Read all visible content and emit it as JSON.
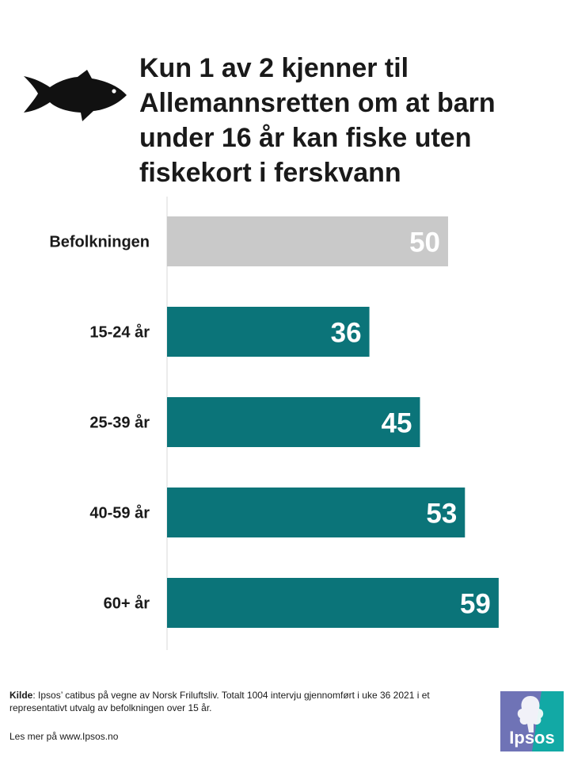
{
  "title_lines": [
    "Kun 1 av 2 kjenner til",
    "Allemannsretten om at barn",
    "under 16 år kan fiske uten",
    "fiskekort i ferskvann"
  ],
  "chart_data": {
    "type": "bar",
    "orientation": "horizontal",
    "title": "Kun 1 av 2 kjenner til Allemannsretten om at barn under 16 år kan fiske uten fiskekort i ferskvann",
    "categories": [
      "Befolkningen",
      "15-24 år",
      "25-39 år",
      "40-59 år",
      "60+ år"
    ],
    "values": [
      50,
      36,
      45,
      53,
      59
    ],
    "value_labels": [
      "50",
      "36",
      "45",
      "53",
      "59"
    ],
    "xlim": [
      0,
      100
    ],
    "xlabel": "",
    "ylabel": "",
    "grid": false,
    "legend": "none"
  },
  "colors": {
    "highlight_bar": "#c9c9c9",
    "bar": "#0b7479",
    "axis": "#d9d9d9",
    "value_label": "#ffffff",
    "logo_left": "#6f73b6",
    "logo_right": "#12a9a5"
  },
  "footer": {
    "source_label": "Kilde",
    "source_text": ": Ipsos’ catibus på vegne  av Norsk Friluftsliv. Totalt 1004 intervju gjennomført  i uke 36 2021 i et representativt  utvalg av befolkningen  over  15 år.",
    "more_text": "Les mer på www.Ipsos.no"
  },
  "logo": {
    "text": "Ipsos"
  },
  "icons": {
    "header": "fish-icon",
    "brand": "ipsos-logo"
  }
}
